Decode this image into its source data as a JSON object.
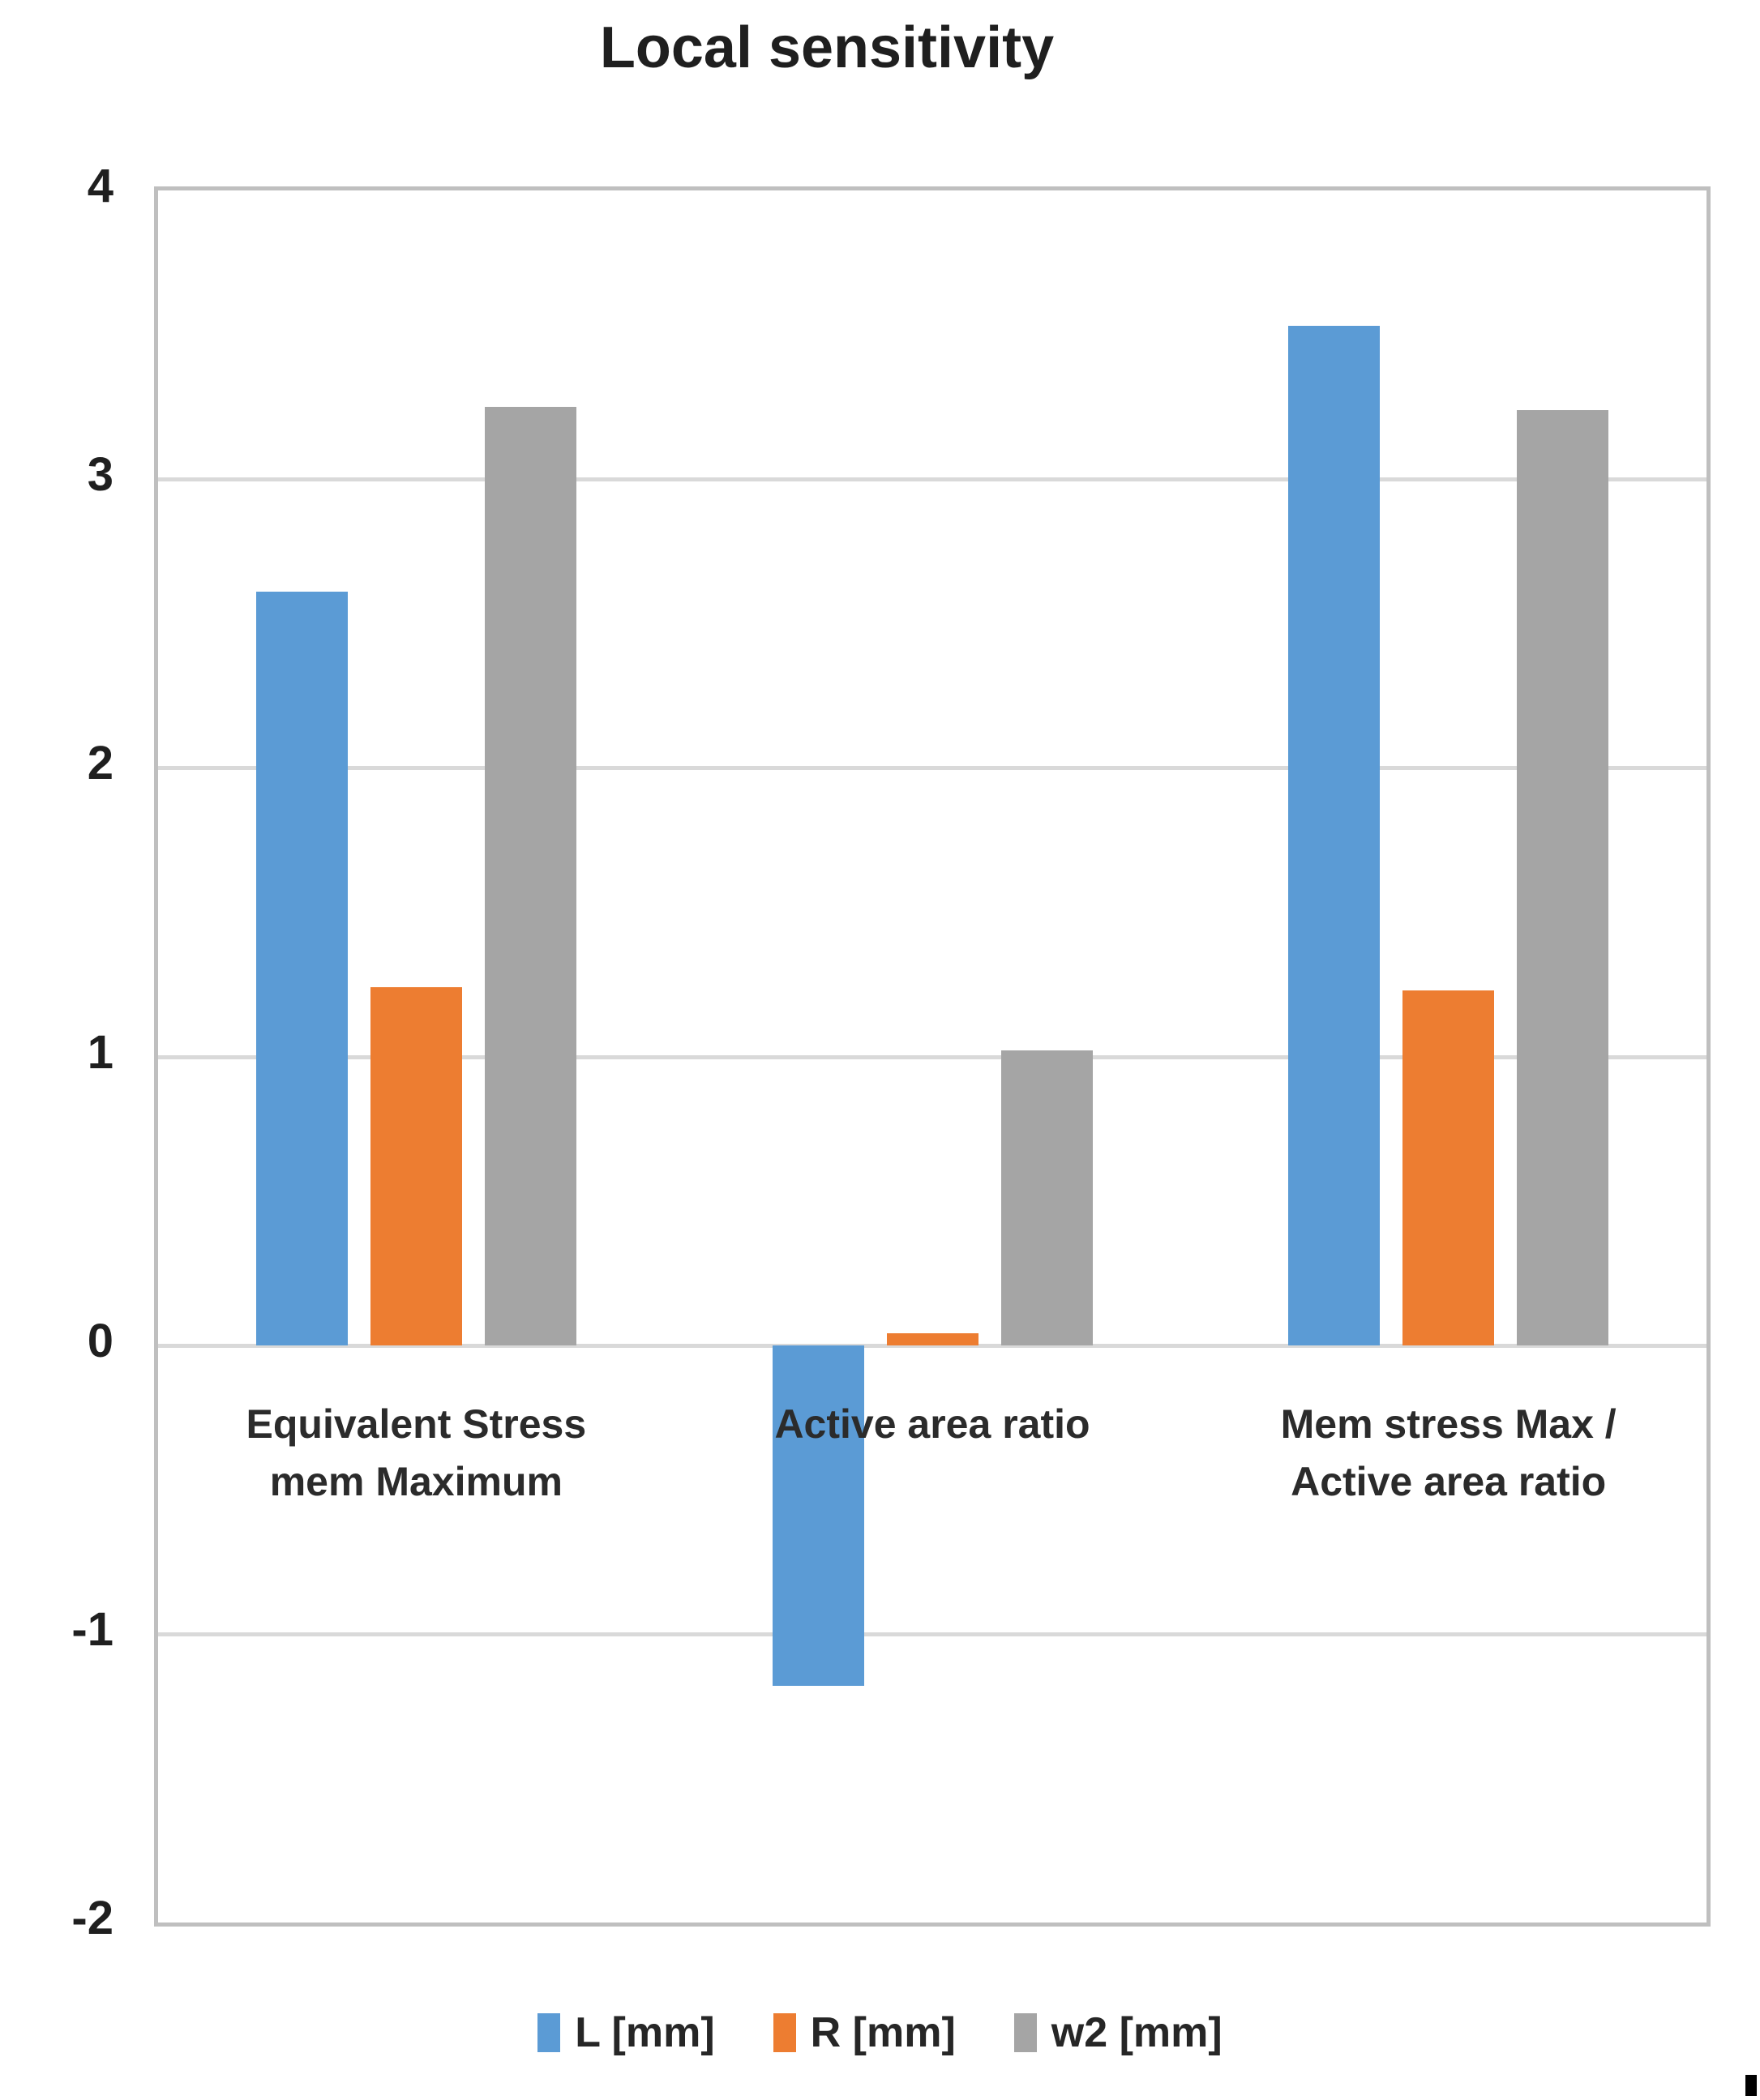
{
  "chart_data": {
    "type": "bar",
    "title": "Local sensitivity",
    "categories": [
      {
        "label": "Equivalent Stress mem Maximum",
        "lines": [
          "Equivalent Stress",
          "mem Maximum"
        ]
      },
      {
        "label": "Active area ratio",
        "lines": [
          "Active area ratio"
        ]
      },
      {
        "label": "Mem stress Max / Active area ratio",
        "lines": [
          "Mem stress Max /",
          "Active area ratio"
        ]
      }
    ],
    "series": [
      {
        "name": "L [mm]",
        "color": "#5B9BD5",
        "values": [
          2.61,
          -1.18,
          3.53
        ]
      },
      {
        "name": "R [mm]",
        "color": "#ED7D31",
        "values": [
          1.24,
          0.04,
          1.23
        ]
      },
      {
        "name": "w2 [mm]",
        "color": "#A5A5A5",
        "values": [
          3.25,
          1.02,
          3.24
        ]
      }
    ],
    "y_axis": {
      "min": -2,
      "max": 4,
      "tick_step": 1,
      "ticks": [
        4,
        3,
        2,
        1,
        0,
        -1,
        -2
      ]
    },
    "grid": true,
    "legend_position": "bottom",
    "style": {
      "gridline_color": "#D9D9D9",
      "axis_border_color": "#BFBFBF",
      "text_color": "#262626",
      "background": "#FFFFFF"
    }
  }
}
